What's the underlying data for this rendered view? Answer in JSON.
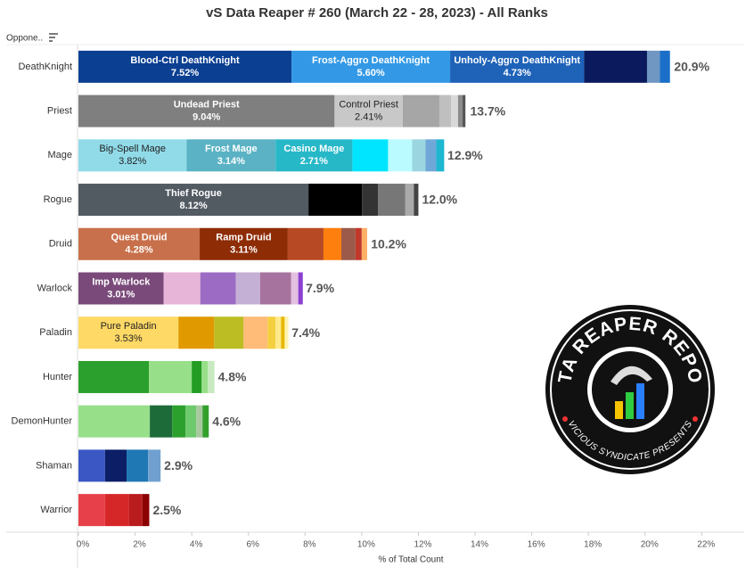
{
  "chart_data": {
    "type": "stacked-bar",
    "orientation": "horizontal",
    "title": "vS Data Reaper # 260 (March 22 - 28, 2023) - All Ranks",
    "y_label": "Oppone..",
    "x_label": "% of Total Count",
    "categories": [
      "DeathKnight",
      "Priest",
      "Mage",
      "Rogue",
      "Druid",
      "Warlock",
      "Paladin",
      "Hunter",
      "DemonHunter",
      "Shaman",
      "Warrior"
    ],
    "bars": [
      {
        "total": 20.9,
        "total_label": "20.9%",
        "segments": [
          {
            "name": "Blood-Ctrl DeathKnight",
            "value": 7.52,
            "value_label": "7.52%",
            "color": "#0b3f92"
          },
          {
            "name": "Frost-Aggro DeathKnight",
            "value": 5.6,
            "value_label": "5.60%",
            "color": "#3399e6"
          },
          {
            "name": "Unholy-Aggro DeathKnight",
            "value": 4.73,
            "value_label": "4.73%",
            "color": "#1f63b9"
          },
          {
            "value": 2.22,
            "color": "#0a1a5c"
          },
          {
            "value": 0.45,
            "color": "#6f97c2"
          },
          {
            "value": 0.36,
            "color": "#1b6fc8"
          }
        ]
      },
      {
        "total": 13.7,
        "total_label": "13.7%",
        "segments": [
          {
            "name": "Undead Priest",
            "value": 9.04,
            "value_label": "9.04%",
            "color": "#7f7f7f"
          },
          {
            "name": "Control Priest",
            "value": 2.41,
            "value_label": "2.41%",
            "color": "#c8c8c8"
          },
          {
            "value": 1.29,
            "color": "#a6a6a6"
          },
          {
            "value": 0.41,
            "color": "#bfbfbf"
          },
          {
            "value": 0.25,
            "color": "#d9d9d9"
          },
          {
            "value": 0.16,
            "color": "#8c8c8c"
          },
          {
            "value": 0.1,
            "color": "#555555"
          }
        ]
      },
      {
        "total": 12.9,
        "total_label": "12.9%",
        "segments": [
          {
            "name": "Big-Spell Mage",
            "value": 3.82,
            "value_label": "3.82%",
            "color": "#91dbe9"
          },
          {
            "name": "Frost Mage",
            "value": 3.14,
            "value_label": "3.14%",
            "color": "#5ab2c4"
          },
          {
            "name": "Casino Mage",
            "value": 2.71,
            "value_label": "2.71%",
            "color": "#27b8c8"
          },
          {
            "value": 1.26,
            "color": "#00e5ff"
          },
          {
            "value": 0.85,
            "color": "#b9fbff"
          },
          {
            "value": 0.47,
            "color": "#9ad5e0"
          },
          {
            "value": 0.38,
            "color": "#6fa8d8"
          },
          {
            "value": 0.28,
            "color": "#1fb7cf"
          }
        ]
      },
      {
        "total": 12.0,
        "total_label": "12.0%",
        "segments": [
          {
            "name": "Thief Rogue",
            "value": 8.12,
            "value_label": "8.12%",
            "color": "#525a62"
          },
          {
            "value": 1.89,
            "color": "#000000"
          },
          {
            "value": 0.57,
            "color": "#333333"
          },
          {
            "value": 0.95,
            "color": "#777777"
          },
          {
            "value": 0.31,
            "color": "#aaaaaa"
          },
          {
            "value": 0.16,
            "color": "#444444"
          }
        ]
      },
      {
        "total": 10.2,
        "total_label": "10.2%",
        "segments": [
          {
            "name": "Quest Druid",
            "value": 4.28,
            "value_label": "4.28%",
            "color": "#c8704b"
          },
          {
            "name": "Ramp Druid",
            "value": 3.11,
            "value_label": "3.11%",
            "color": "#8e2c06"
          },
          {
            "value": 1.26,
            "color": "#b74a24"
          },
          {
            "value": 0.63,
            "color": "#ff7f0e"
          },
          {
            "value": 0.5,
            "color": "#9c5a4a"
          },
          {
            "value": 0.22,
            "color": "#c0392b"
          },
          {
            "value": 0.19,
            "color": "#ffb066"
          }
        ]
      },
      {
        "total": 7.9,
        "total_label": "7.9%",
        "segments": [
          {
            "name": "Imp Warlock",
            "value": 3.01,
            "value_label": "3.01%",
            "color": "#7a4a7a"
          },
          {
            "value": 1.29,
            "color": "#e7b5d8"
          },
          {
            "value": 1.26,
            "color": "#9c6cc4"
          },
          {
            "value": 0.85,
            "color": "#c5b0d5"
          },
          {
            "value": 1.1,
            "color": "#a6739f"
          },
          {
            "value": 0.25,
            "color": "#e3c0e0"
          },
          {
            "value": 0.16,
            "color": "#8c40d0"
          }
        ]
      },
      {
        "total": 7.4,
        "total_label": "7.4%",
        "segments": [
          {
            "name": "Pure Paladin",
            "value": 3.53,
            "value_label": "3.53%",
            "color": "#ffd966"
          },
          {
            "value": 1.26,
            "color": "#e09a00"
          },
          {
            "value": 1.04,
            "color": "#bcbd22"
          },
          {
            "value": 0.85,
            "color": "#ffbb78"
          },
          {
            "value": 0.28,
            "color": "#f4d03f"
          },
          {
            "value": 0.19,
            "color": "#ffe98a"
          },
          {
            "value": 0.13,
            "color": "#e6b800"
          },
          {
            "value": 0.13,
            "color": "#fff3b0"
          }
        ]
      },
      {
        "total": 4.8,
        "total_label": "4.8%",
        "segments": [
          {
            "value": 2.49,
            "color": "#2ca02c"
          },
          {
            "value": 1.51,
            "color": "#98df8a"
          },
          {
            "value": 0.35,
            "color": "#239c23"
          },
          {
            "value": 0.22,
            "color": "#98df8a"
          },
          {
            "value": 0.23,
            "color": "#c7eac0"
          }
        ]
      },
      {
        "total": 4.6,
        "total_label": "4.6%",
        "segments": [
          {
            "value": 2.52,
            "color": "#98df8a"
          },
          {
            "value": 0.79,
            "color": "#1e6b3a"
          },
          {
            "value": 0.47,
            "color": "#2ca02c"
          },
          {
            "value": 0.38,
            "color": "#6cc96c"
          },
          {
            "value": 0.22,
            "color": "#a8c8a0"
          },
          {
            "value": 0.22,
            "color": "#33a02c"
          }
        ]
      },
      {
        "total": 2.9,
        "total_label": "2.9%",
        "segments": [
          {
            "value": 0.94,
            "color": "#3a57c4"
          },
          {
            "value": 0.76,
            "color": "#0b1e66"
          },
          {
            "value": 0.76,
            "color": "#1f77b4"
          },
          {
            "value": 0.44,
            "color": "#6fa0cf"
          }
        ]
      },
      {
        "total": 2.5,
        "total_label": "2.5%",
        "segments": [
          {
            "value": 0.94,
            "color": "#e8404a"
          },
          {
            "value": 0.85,
            "color": "#d62728"
          },
          {
            "value": 0.47,
            "color": "#b81c1c"
          },
          {
            "value": 0.24,
            "color": "#8b0000"
          }
        ]
      }
    ],
    "xlim": [
      0,
      23.5
    ],
    "xticks": [
      {
        "value": 0,
        "label": "0%"
      },
      {
        "value": 2,
        "label": "2%"
      },
      {
        "value": 4,
        "label": "4%"
      },
      {
        "value": 6,
        "label": "6%"
      },
      {
        "value": 8,
        "label": "8%"
      },
      {
        "value": 10,
        "label": "10%"
      },
      {
        "value": 12,
        "label": "12%"
      },
      {
        "value": 14,
        "label": "14%"
      },
      {
        "value": 16,
        "label": "16%"
      },
      {
        "value": 18,
        "label": "18%"
      },
      {
        "value": 20,
        "label": "20%"
      },
      {
        "value": 22,
        "label": "22%"
      }
    ],
    "grid": false
  },
  "logo": {
    "title": "DATA REAPER REPORT",
    "subtitle": "VICIOUS SYNDICATE PRESENTS"
  }
}
